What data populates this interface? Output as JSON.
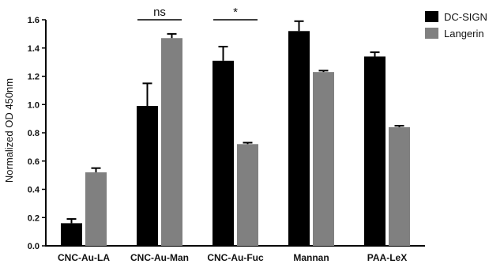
{
  "chart_data": {
    "type": "bar",
    "ylabel": "Normalized OD 450nm",
    "ylim": [
      0,
      1.6
    ],
    "yticks": [
      "0.0",
      "0.2",
      "0.4",
      "0.6",
      "0.8",
      "1.0",
      "1.2",
      "1.4",
      "1.6"
    ],
    "categories": [
      "CNC-Au-LA",
      "CNC-Au-Man",
      "CNC-Au-Fuc",
      "Mannan",
      "PAA-LeX"
    ],
    "series": [
      {
        "name": "DC-SIGN",
        "color": "#000000",
        "values": [
          0.16,
          0.99,
          1.31,
          1.52,
          1.34
        ],
        "errors": [
          0.03,
          0.16,
          0.1,
          0.07,
          0.03
        ]
      },
      {
        "name": "Langerin",
        "color": "#808080",
        "values": [
          0.52,
          1.47,
          0.72,
          1.23,
          0.84
        ],
        "errors": [
          0.03,
          0.03,
          0.01,
          0.01,
          0.01
        ]
      }
    ],
    "legend_position": "top-right",
    "grid": false,
    "annotations": [
      {
        "text": "ns",
        "category": "CNC-Au-Man",
        "level": 1.6
      },
      {
        "text": "*",
        "category": "CNC-Au-Fuc",
        "level": 1.6
      }
    ]
  }
}
